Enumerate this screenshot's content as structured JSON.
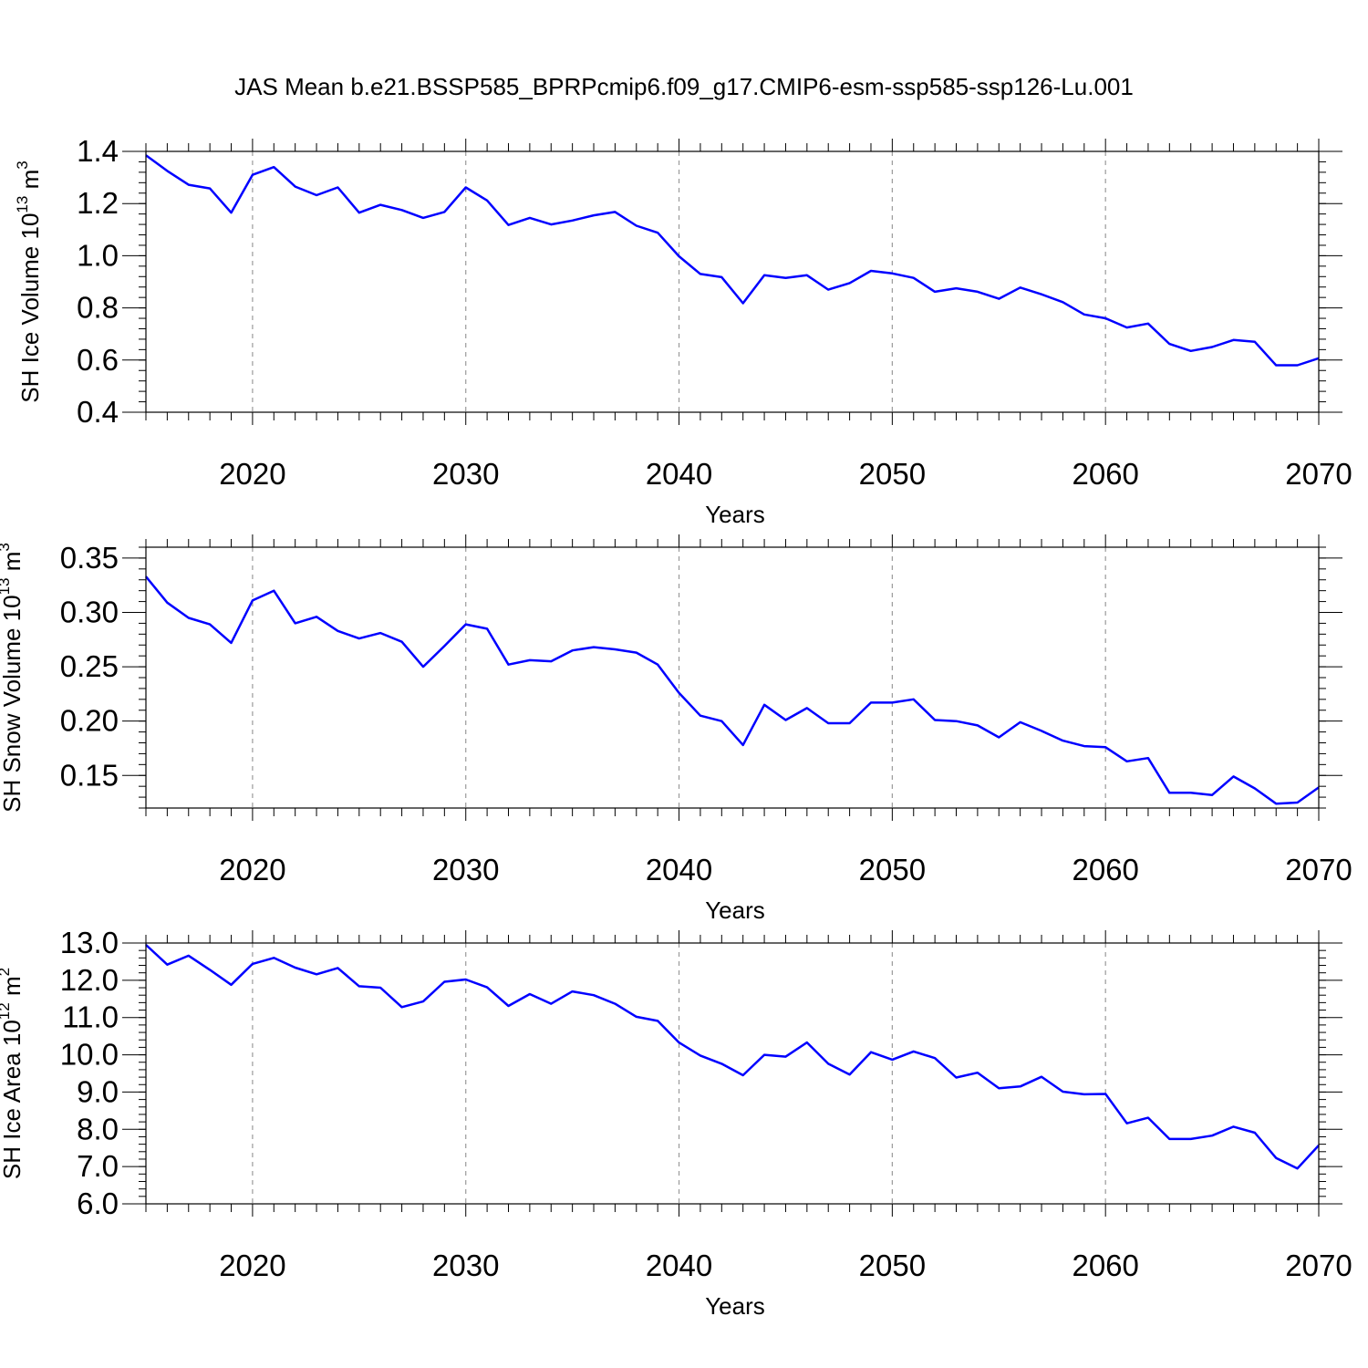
{
  "chart_data": {
    "type": "line",
    "title": "JAS Mean b.e21.BSSP585_BPRPcmip6.f09_g17.CMIP6-esm-ssp585-ssp126-Lu.001",
    "line_color": "#0000ff",
    "grid_color": "#9a9a9a",
    "x": [
      2015,
      2016,
      2017,
      2018,
      2019,
      2020,
      2021,
      2022,
      2023,
      2024,
      2025,
      2026,
      2027,
      2028,
      2029,
      2030,
      2031,
      2032,
      2033,
      2034,
      2035,
      2036,
      2037,
      2038,
      2039,
      2040,
      2041,
      2042,
      2043,
      2044,
      2045,
      2046,
      2047,
      2048,
      2049,
      2050,
      2051,
      2052,
      2053,
      2054,
      2055,
      2056,
      2057,
      2058,
      2059,
      2060,
      2061,
      2062,
      2063,
      2064,
      2065,
      2066,
      2067,
      2068,
      2069,
      2070
    ],
    "panels": [
      {
        "ylabel": {
          "main": "SH Ice Volume 10",
          "exp": "13",
          "unit": " m",
          "unit_exp": "3"
        },
        "xlabel": "Years",
        "xlim": [
          2015,
          2070
        ],
        "ylim": [
          0.4,
          1.4
        ],
        "yticks": [
          0.4,
          0.6,
          0.8,
          1.0,
          1.2,
          1.4
        ],
        "ytick_labels": [
          "0.4",
          "0.6",
          "0.8",
          "1.0",
          "1.2",
          "1.4"
        ],
        "yminor_step": 0.04,
        "xticks": [
          2020,
          2030,
          2040,
          2050,
          2060,
          2070
        ],
        "xtick_labels": [
          "2020",
          "2030",
          "2040",
          "2050",
          "2060",
          "2070"
        ],
        "values": [
          1.385,
          1.325,
          1.272,
          1.258,
          1.165,
          1.31,
          1.34,
          1.265,
          1.232,
          1.262,
          1.165,
          1.195,
          1.175,
          1.145,
          1.168,
          1.262,
          1.212,
          1.118,
          1.145,
          1.12,
          1.135,
          1.155,
          1.168,
          1.115,
          1.088,
          0.998,
          0.93,
          0.918,
          0.818,
          0.925,
          0.915,
          0.925,
          0.87,
          0.895,
          0.942,
          0.932,
          0.915,
          0.862,
          0.875,
          0.862,
          0.835,
          0.878,
          0.852,
          0.822,
          0.775,
          0.76,
          0.725,
          0.74,
          0.662,
          0.635,
          0.65,
          0.677,
          0.67,
          0.58,
          0.58,
          0.607
        ]
      },
      {
        "ylabel": {
          "main": "SH Snow Volume 10",
          "exp": "13",
          "unit": " m",
          "unit_exp": "3"
        },
        "xlabel": "Years",
        "xlim": [
          2015,
          2070
        ],
        "ylim": [
          0.12,
          0.36
        ],
        "yticks": [
          0.15,
          0.2,
          0.25,
          0.3,
          0.35
        ],
        "ytick_labels": [
          "0.15",
          "0.20",
          "0.25",
          "0.30",
          "0.35"
        ],
        "yminor_step": 0.01,
        "xticks": [
          2020,
          2030,
          2040,
          2050,
          2060,
          2070
        ],
        "xtick_labels": [
          "2020",
          "2030",
          "2040",
          "2050",
          "2060",
          "2070"
        ],
        "values": [
          0.333,
          0.309,
          0.295,
          0.289,
          0.272,
          0.311,
          0.32,
          0.29,
          0.296,
          0.283,
          0.276,
          0.281,
          0.273,
          0.25,
          0.269,
          0.289,
          0.285,
          0.252,
          0.256,
          0.255,
          0.265,
          0.268,
          0.266,
          0.263,
          0.252,
          0.226,
          0.205,
          0.2,
          0.178,
          0.215,
          0.201,
          0.212,
          0.198,
          0.198,
          0.217,
          0.217,
          0.22,
          0.201,
          0.2,
          0.196,
          0.185,
          0.199,
          0.191,
          0.182,
          0.177,
          0.176,
          0.163,
          0.166,
          0.134,
          0.134,
          0.132,
          0.149,
          0.138,
          0.124,
          0.125,
          0.139
        ]
      },
      {
        "ylabel": {
          "main": "SH Ice Area 10",
          "exp": "12",
          "unit": " m",
          "unit_exp": "2"
        },
        "xlabel": "Years",
        "xlim": [
          2015,
          2070
        ],
        "ylim": [
          6.0,
          13.0
        ],
        "yticks": [
          6.0,
          7.0,
          8.0,
          9.0,
          10.0,
          11.0,
          12.0,
          13.0
        ],
        "ytick_labels": [
          "6.0",
          "7.0",
          "8.0",
          "9.0",
          "10.0",
          "11.0",
          "12.0",
          "13.0"
        ],
        "yminor_step": 0.2,
        "xticks": [
          2020,
          2030,
          2040,
          2050,
          2060,
          2070
        ],
        "xtick_labels": [
          "2020",
          "2030",
          "2040",
          "2050",
          "2060",
          "2070"
        ],
        "values": [
          12.95,
          12.42,
          12.66,
          12.28,
          11.88,
          12.44,
          12.6,
          12.34,
          12.16,
          12.33,
          11.84,
          11.8,
          11.28,
          11.43,
          11.96,
          12.02,
          11.81,
          11.31,
          11.63,
          11.37,
          11.7,
          11.6,
          11.37,
          11.02,
          10.91,
          10.33,
          9.98,
          9.76,
          9.45,
          10.0,
          9.95,
          10.33,
          9.76,
          9.47,
          10.07,
          9.87,
          10.09,
          9.91,
          9.39,
          9.52,
          9.1,
          9.15,
          9.41,
          9.01,
          8.94,
          8.95,
          8.16,
          8.31,
          7.74,
          7.74,
          7.83,
          8.07,
          7.91,
          7.23,
          6.95,
          7.57
        ]
      }
    ]
  }
}
